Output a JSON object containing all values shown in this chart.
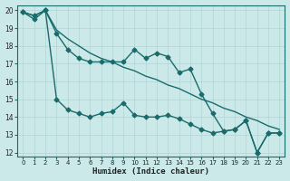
{
  "xlabel": "Humidex (Indice chaleur)",
  "background_color": "#cce9e9",
  "grid_color": "#b0d4d4",
  "line_color": "#1a6b6b",
  "xlim": [
    -0.5,
    23.5
  ],
  "ylim": [
    11.8,
    20.3
  ],
  "xticks": [
    0,
    1,
    2,
    3,
    4,
    5,
    6,
    7,
    8,
    9,
    10,
    11,
    12,
    13,
    14,
    15,
    16,
    17,
    18,
    19,
    20,
    21,
    22,
    23
  ],
  "yticks": [
    12,
    13,
    14,
    15,
    16,
    17,
    18,
    19,
    20
  ],
  "series1_x": [
    0,
    1,
    2,
    3,
    4,
    5,
    6,
    7,
    8,
    9,
    10,
    11,
    12,
    13,
    14,
    15,
    16,
    17,
    18,
    19,
    20,
    21,
    22,
    23
  ],
  "series1_y": [
    19.9,
    19.7,
    20.0,
    18.9,
    18.4,
    18.0,
    17.6,
    17.3,
    17.1,
    16.8,
    16.6,
    16.3,
    16.1,
    15.8,
    15.6,
    15.3,
    15.0,
    14.8,
    14.5,
    14.3,
    14.0,
    13.8,
    13.5,
    13.3
  ],
  "series2_x": [
    0,
    1,
    2,
    3,
    4,
    5,
    6,
    7,
    8,
    9,
    10,
    11,
    12,
    13,
    14,
    15,
    16,
    17,
    18,
    19,
    20,
    21,
    22,
    23
  ],
  "series2_y": [
    19.9,
    19.5,
    20.0,
    18.7,
    17.8,
    17.3,
    17.1,
    17.1,
    17.1,
    17.1,
    17.8,
    17.3,
    17.6,
    17.4,
    16.5,
    16.7,
    15.3,
    14.2,
    13.2,
    13.3,
    13.8,
    12.0,
    13.1,
    13.1
  ],
  "series3_x": [
    0,
    1,
    2,
    3,
    4,
    5,
    6,
    7,
    8,
    9,
    10,
    11,
    12,
    13,
    14,
    15,
    16,
    17,
    18,
    19,
    20,
    21,
    22,
    23
  ],
  "series3_y": [
    19.9,
    19.7,
    20.0,
    15.0,
    14.4,
    14.2,
    14.0,
    14.2,
    14.3,
    14.8,
    14.1,
    14.0,
    14.0,
    14.1,
    13.9,
    13.6,
    13.3,
    13.1,
    13.2,
    13.3,
    13.8,
    12.0,
    13.1,
    13.1
  ]
}
